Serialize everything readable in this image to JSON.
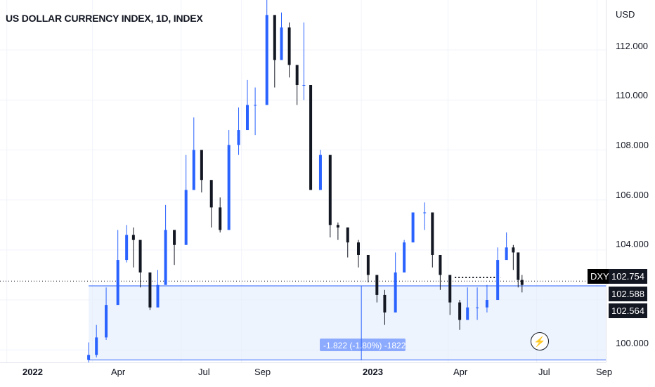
{
  "header": {
    "title": "US DOLLAR CURRENCY INDEX, 1D, INDEX"
  },
  "price_axis": {
    "currency": "USD",
    "ticks": [
      "112.000",
      "110.000",
      "108.000",
      "106.000",
      "104.000",
      "100.000"
    ]
  },
  "time_axis": {
    "labels": [
      "2022",
      "Apr",
      "Jul",
      "Sep",
      "2023",
      "Apr",
      "Jul",
      "Sep"
    ]
  },
  "tags": {
    "symbol": "DXY",
    "last_price": "102.754",
    "price_2": "102.588",
    "price_3": "102.564"
  },
  "measure_label": "-1.822 (-1.80%) -1822",
  "colors": {
    "up": "#2962ff",
    "down": "#131722",
    "line": "#2962ff",
    "measure_fill": "#e3ecfb"
  },
  "chart_data": {
    "type": "candlestick",
    "title": "US DOLLAR CURRENCY INDEX, 1D, INDEX",
    "ylabel": "USD",
    "ylim": [
      99.5,
      114
    ],
    "x": [
      "2022-03-28",
      "2022-04-05",
      "2022-04-15",
      "2022-04-27",
      "2022-05-06",
      "2022-05-13",
      "2022-05-20",
      "2022-05-30",
      "2022-06-07",
      "2022-06-15",
      "2022-06-24",
      "2022-07-06",
      "2022-07-14",
      "2022-07-22",
      "2022-08-01",
      "2022-08-10",
      "2022-08-19",
      "2022-08-29",
      "2022-09-07",
      "2022-09-15",
      "2022-09-27",
      "2022-10-05",
      "2022-10-12",
      "2022-10-20",
      "2022-10-28",
      "2022-11-04",
      "2022-11-11",
      "2022-11-21",
      "2022-12-01",
      "2022-12-09",
      "2022-12-19",
      "2022-12-30",
      "2023-01-09",
      "2023-01-18",
      "2023-01-26",
      "2023-02-06",
      "2023-02-15",
      "2023-02-24",
      "2023-03-08",
      "2023-03-16",
      "2023-03-24",
      "2023-04-03",
      "2023-04-13",
      "2023-04-21",
      "2023-05-01",
      "2023-05-11",
      "2023-05-22",
      "2023-05-31",
      "2023-06-07",
      "2023-06-12",
      "2023-06-16"
    ],
    "close": [
      99.8,
      100.5,
      101.8,
      103.6,
      104.6,
      104.4,
      103.1,
      101.7,
      102.6,
      104.8,
      104.2,
      106.4,
      108.0,
      106.8,
      105.7,
      104.8,
      108.2,
      108.8,
      109.8,
      109.8,
      113.4,
      111.6,
      112.9,
      111.4,
      110.6,
      110.6,
      106.4,
      107.8,
      105.0,
      104.9,
      104.3,
      103.8,
      103.0,
      102.2,
      101.5,
      103.1,
      104.3,
      105.5,
      105.5,
      103.8,
      103.0,
      101.9,
      101.2,
      101.7,
      101.7,
      102.0,
      103.6,
      104.1,
      103.9,
      102.8,
      102.6
    ],
    "high_low": [
      [
        99.5,
        100.3
      ],
      [
        99.7,
        101.0
      ],
      [
        100.4,
        102.5
      ],
      [
        102.8,
        104.8
      ],
      [
        103.5,
        105.0
      ],
      [
        103.3,
        104.9
      ],
      [
        102.5,
        103.9
      ],
      [
        101.6,
        102.6
      ],
      [
        101.9,
        103.2
      ],
      [
        104.0,
        105.8
      ],
      [
        103.4,
        104.6
      ],
      [
        105.9,
        107.8
      ],
      [
        107.6,
        109.3
      ],
      [
        106.3,
        107.8
      ],
      [
        104.9,
        106.6
      ],
      [
        104.7,
        106.1
      ],
      [
        106.6,
        108.8
      ],
      [
        107.8,
        109.7
      ],
      [
        108.9,
        110.8
      ],
      [
        108.6,
        110.5
      ],
      [
        112.4,
        114.8
      ],
      [
        110.5,
        112.5
      ],
      [
        111.7,
        113.5
      ],
      [
        110.9,
        113.1
      ],
      [
        109.8,
        111.4
      ],
      [
        110.0,
        113.1
      ],
      [
        106.4,
        108.7
      ],
      [
        106.8,
        108.0
      ],
      [
        104.5,
        106.6
      ],
      [
        104.4,
        105.1
      ],
      [
        103.7,
        104.9
      ],
      [
        103.3,
        104.4
      ],
      [
        102.7,
        103.7
      ],
      [
        101.9,
        102.9
      ],
      [
        101.0,
        102.4
      ],
      [
        102.7,
        103.9
      ],
      [
        103.2,
        104.4
      ],
      [
        104.8,
        105.5
      ],
      [
        104.8,
        105.9
      ],
      [
        103.3,
        104.7
      ],
      [
        102.4,
        103.5
      ],
      [
        101.4,
        102.5
      ],
      [
        100.8,
        102.0
      ],
      [
        101.3,
        102.5
      ],
      [
        101.2,
        102.5
      ],
      [
        101.5,
        102.6
      ],
      [
        103.0,
        104.1
      ],
      [
        103.9,
        104.7
      ],
      [
        103.2,
        104.2
      ],
      [
        102.5,
        103.6
      ],
      [
        102.3,
        103.0
      ]
    ],
    "horizontal_lines": [
      102.564,
      99.6
    ],
    "last_price": 102.754
  }
}
